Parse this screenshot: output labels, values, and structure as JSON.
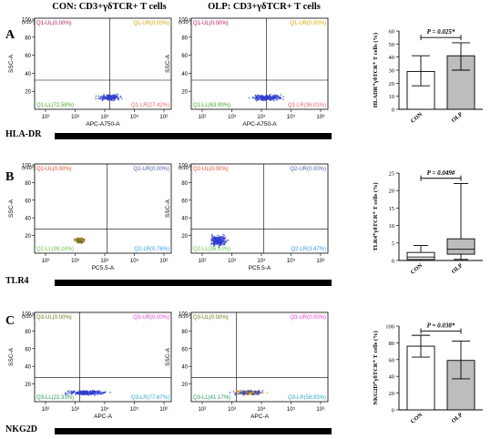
{
  "header": {
    "con_title": "CON: CD3+γδTCR+ T cells",
    "olp_title": "OLP: CD3+γδTCR+ T cells"
  },
  "panels": [
    {
      "letter": "A",
      "marker": "HLA-DR",
      "xaxis_label": "APC-A750-A",
      "yaxis_label": "SSC-A",
      "y_exponent": "(x10³)",
      "x_ticks": [
        "10²",
        "10³",
        "10⁴",
        "10⁵",
        "10⁶"
      ],
      "y_ticks": [
        "20",
        "40",
        "60",
        "80",
        "100"
      ],
      "colors": {
        "ul": "#b5195b",
        "ur": "#d9a400",
        "ll": "#45a82e",
        "lr": "#e4656b",
        "dots": "#2e3cd0"
      },
      "con": {
        "ul": "Q1-UL(0.00%)",
        "ur": "Q1-UR(0.00%)",
        "ll": "Q1-LL(72.58%)",
        "lr": "Q1-LR(27.42%)"
      },
      "olp": {
        "ul": "Q1-UL(0.00%)",
        "ur": "Q1-UR(0.00%)",
        "ll": "Q1-LL(63.99%)",
        "lr": "Q1-LR(36.01%)"
      }
    },
    {
      "letter": "B",
      "marker": "TLR4",
      "xaxis_label": "PC5.5-A",
      "yaxis_label": "SSC-A",
      "y_exponent": "(x10³)",
      "x_ticks": [
        "10²",
        "10³",
        "10⁴",
        "10⁵",
        "10⁶"
      ],
      "y_ticks": [
        "20",
        "40",
        "60",
        "80",
        "100"
      ],
      "colors": {
        "ul": "#e4452e",
        "ur": "#4a5ea0",
        "ll": "#6cc24a",
        "lr": "#2f9be0",
        "dots": "#2e3cd0"
      },
      "con": {
        "ul": "Q2-UL(0.00%)",
        "ur": "Q2-UR(0.00%)",
        "ll": "Q2-LL(99.24%)",
        "lr": "Q2-LR(0.76%)"
      },
      "olp": {
        "ul": "Q2-UL(0.00%)",
        "ur": "Q2-UR(0.00%)",
        "ll": "Q2-LL(96.53%)",
        "lr": "Q2-LR(3.47%)"
      }
    },
    {
      "letter": "C",
      "marker": "NKG2D",
      "xaxis_label": "APC-A",
      "yaxis_label": "SSC-A",
      "y_exponent": "(x10³)",
      "x_ticks": [
        "10²",
        "10³",
        "10⁴",
        "10⁵",
        "10⁶"
      ],
      "y_ticks": [
        "20",
        "40",
        "60",
        "80",
        "100"
      ],
      "colors": {
        "ul": "#6e7a14",
        "ur": "#e040d0",
        "ll": "#1e9b56",
        "lr": "#2aa8c8",
        "dots": "#2e3cd0"
      },
      "con": {
        "ul": "Q3-UL(0.00%)",
        "ur": "Q3-UR(0.00%)",
        "ll": "Q3-LL(22.33%)",
        "lr": "Q3-LR(77.67%)"
      },
      "olp": {
        "ul": "Q3-UL(0.00%)",
        "ur": "Q3-UR(0.00%)",
        "ll": "Q3-LL(41.17%)",
        "lr": "Q3-LR(58.83%)"
      }
    }
  ],
  "chart_data": [
    {
      "type": "bar",
      "categories": [
        "CON",
        "OLP"
      ],
      "values": [
        29,
        41
      ],
      "errors": [
        [
          18,
          41
        ],
        [
          30,
          51
        ]
      ],
      "fill_colors": [
        "#ffffff",
        "#bdbdbd"
      ],
      "ylabel": "HLADR⁺γδTCR⁺ T cells (%)",
      "yticks": [
        "0",
        "10",
        "20",
        "30",
        "40",
        "50",
        "60"
      ],
      "ylim": [
        0,
        60
      ],
      "annotation": "P = 0.025*",
      "annotation_y": 55
    },
    {
      "type": "box",
      "categories": [
        "CON",
        "OLP"
      ],
      "boxes": [
        {
          "min": 0,
          "q1": 0.3,
          "median": 1.0,
          "q3": 2.3,
          "max": 4.3
        },
        {
          "min": 0.3,
          "q1": 1.8,
          "median": 3.2,
          "q3": 6.2,
          "max": 22
        }
      ],
      "fill_colors": [
        "#ffffff",
        "#bdbdbd"
      ],
      "ylabel": "TLR4⁺γδTCR⁺ T cells (%)",
      "yticks": [
        "0",
        "5",
        "10",
        "15",
        "20",
        "25"
      ],
      "ylim": [
        0,
        25
      ],
      "annotation": "P = 0.049#",
      "annotation_y": 23.5
    },
    {
      "type": "bar",
      "categories": [
        "CON",
        "OLP"
      ],
      "values": [
        76,
        59
      ],
      "errors": [
        [
          63,
          89
        ],
        [
          37,
          82
        ]
      ],
      "fill_colors": [
        "#ffffff",
        "#bdbdbd"
      ],
      "ylabel": "NKG2D⁺γδTCR⁺ T cells (%)",
      "yticks": [
        "0",
        "20",
        "40",
        "60",
        "80",
        "100"
      ],
      "ylim": [
        0,
        100
      ],
      "annotation": "P = 0.038*",
      "annotation_y": 94
    }
  ]
}
